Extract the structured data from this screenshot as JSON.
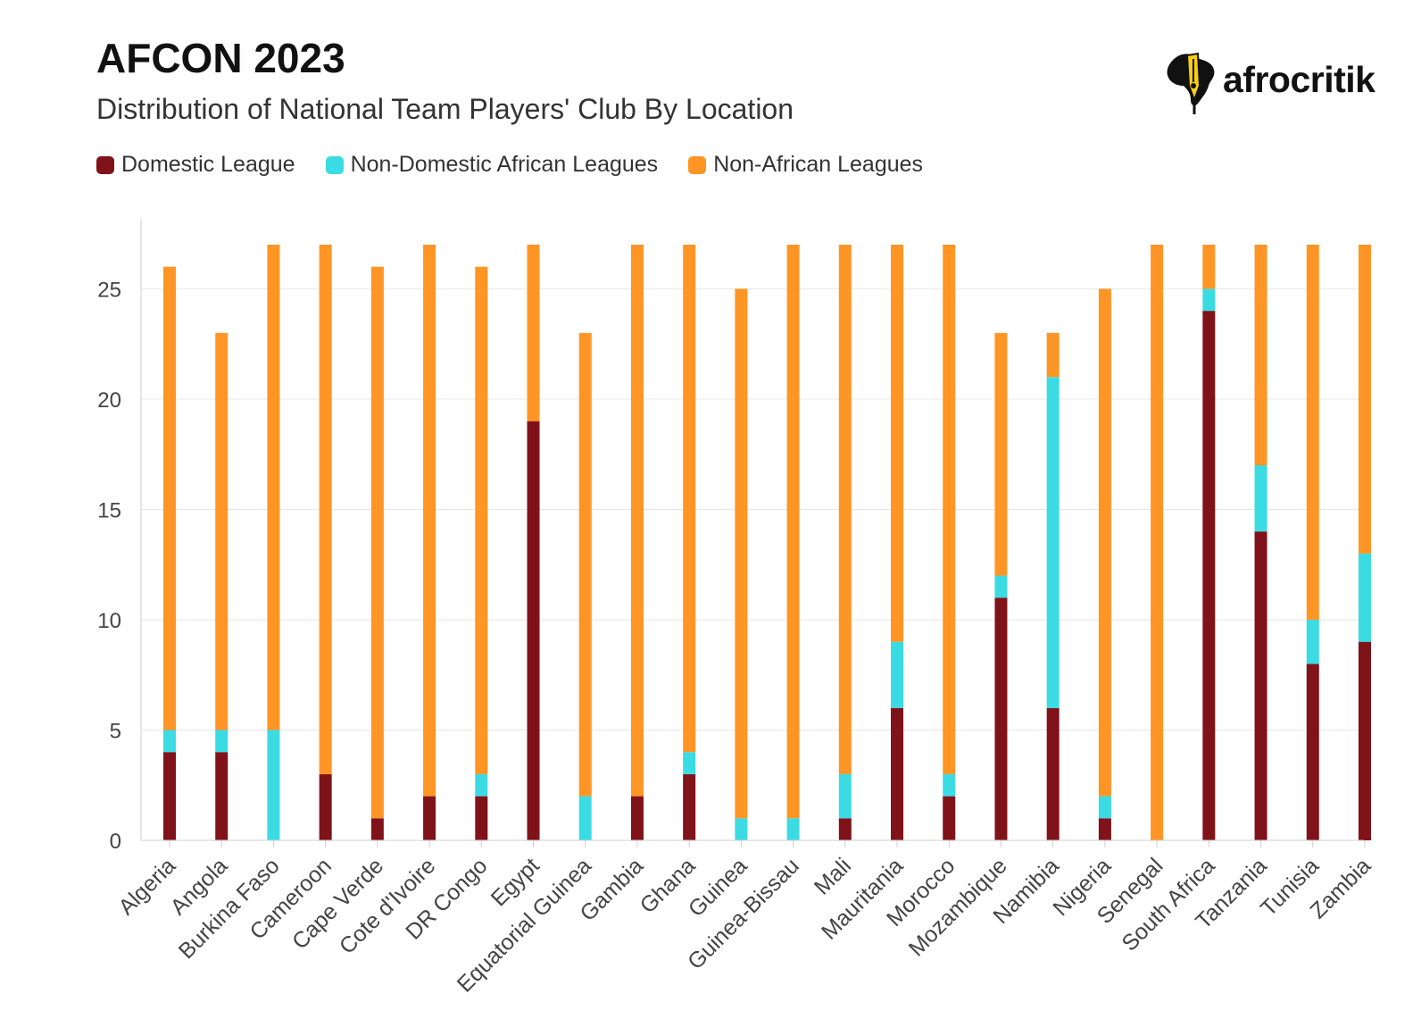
{
  "header": {
    "title": "AFCON 2023",
    "subtitle": "Distribution of National Team Players' Club By Location"
  },
  "logo": {
    "text": "afrocritik",
    "icon": "africa-pen-nib-icon"
  },
  "colors": {
    "domestic": "#7f1319",
    "non_domestic_african": "#3bdbe4",
    "non_african": "#ff9525"
  },
  "legend": [
    {
      "label": "Domestic League",
      "color": "#7f1319"
    },
    {
      "label": "Non-Domestic African Leagues",
      "color": "#3bdbe4"
    },
    {
      "label": "Non-African Leagues",
      "color": "#ff9525"
    }
  ],
  "chart_data": {
    "type": "bar",
    "stacked": true,
    "title": "",
    "xlabel": "",
    "ylabel": "",
    "ylim": [
      0,
      27
    ],
    "yticks": [
      0,
      5,
      10,
      15,
      20,
      25
    ],
    "grid": true,
    "legend_position": "top-left",
    "categories": [
      "Algeria",
      "Angola",
      "Burkina Faso",
      "Cameroon",
      "Cape Verde",
      "Cote d'Ivoire",
      "DR Congo",
      "Egypt",
      "Equatorial Guinea",
      "Gambia",
      "Ghana",
      "Guinea",
      "Guinea-Bissau",
      "Mali",
      "Mauritania",
      "Morocco",
      "Mozambique",
      "Namibia",
      "Nigeria",
      "Senegal",
      "South Africa",
      "Tanzania",
      "Tunisia",
      "Zambia"
    ],
    "series": [
      {
        "name": "Domestic League",
        "color": "#7f1319",
        "values": [
          4,
          4,
          0,
          3,
          1,
          2,
          2,
          19,
          0,
          2,
          3,
          0,
          0,
          1,
          6,
          2,
          11,
          6,
          1,
          0,
          24,
          14,
          8,
          9
        ]
      },
      {
        "name": "Non-Domestic African Leagues",
        "color": "#3bdbe4",
        "values": [
          1,
          1,
          5,
          0,
          0,
          0,
          1,
          0,
          2,
          0,
          1,
          1,
          1,
          2,
          3,
          1,
          1,
          15,
          1,
          0,
          1,
          3,
          2,
          4
        ]
      },
      {
        "name": "Non-African Leagues",
        "color": "#ff9525",
        "values": [
          21,
          18,
          22,
          24,
          25,
          25,
          23,
          8,
          21,
          25,
          23,
          24,
          26,
          24,
          18,
          24,
          11,
          2,
          23,
          27,
          2,
          10,
          17,
          14
        ]
      }
    ]
  }
}
